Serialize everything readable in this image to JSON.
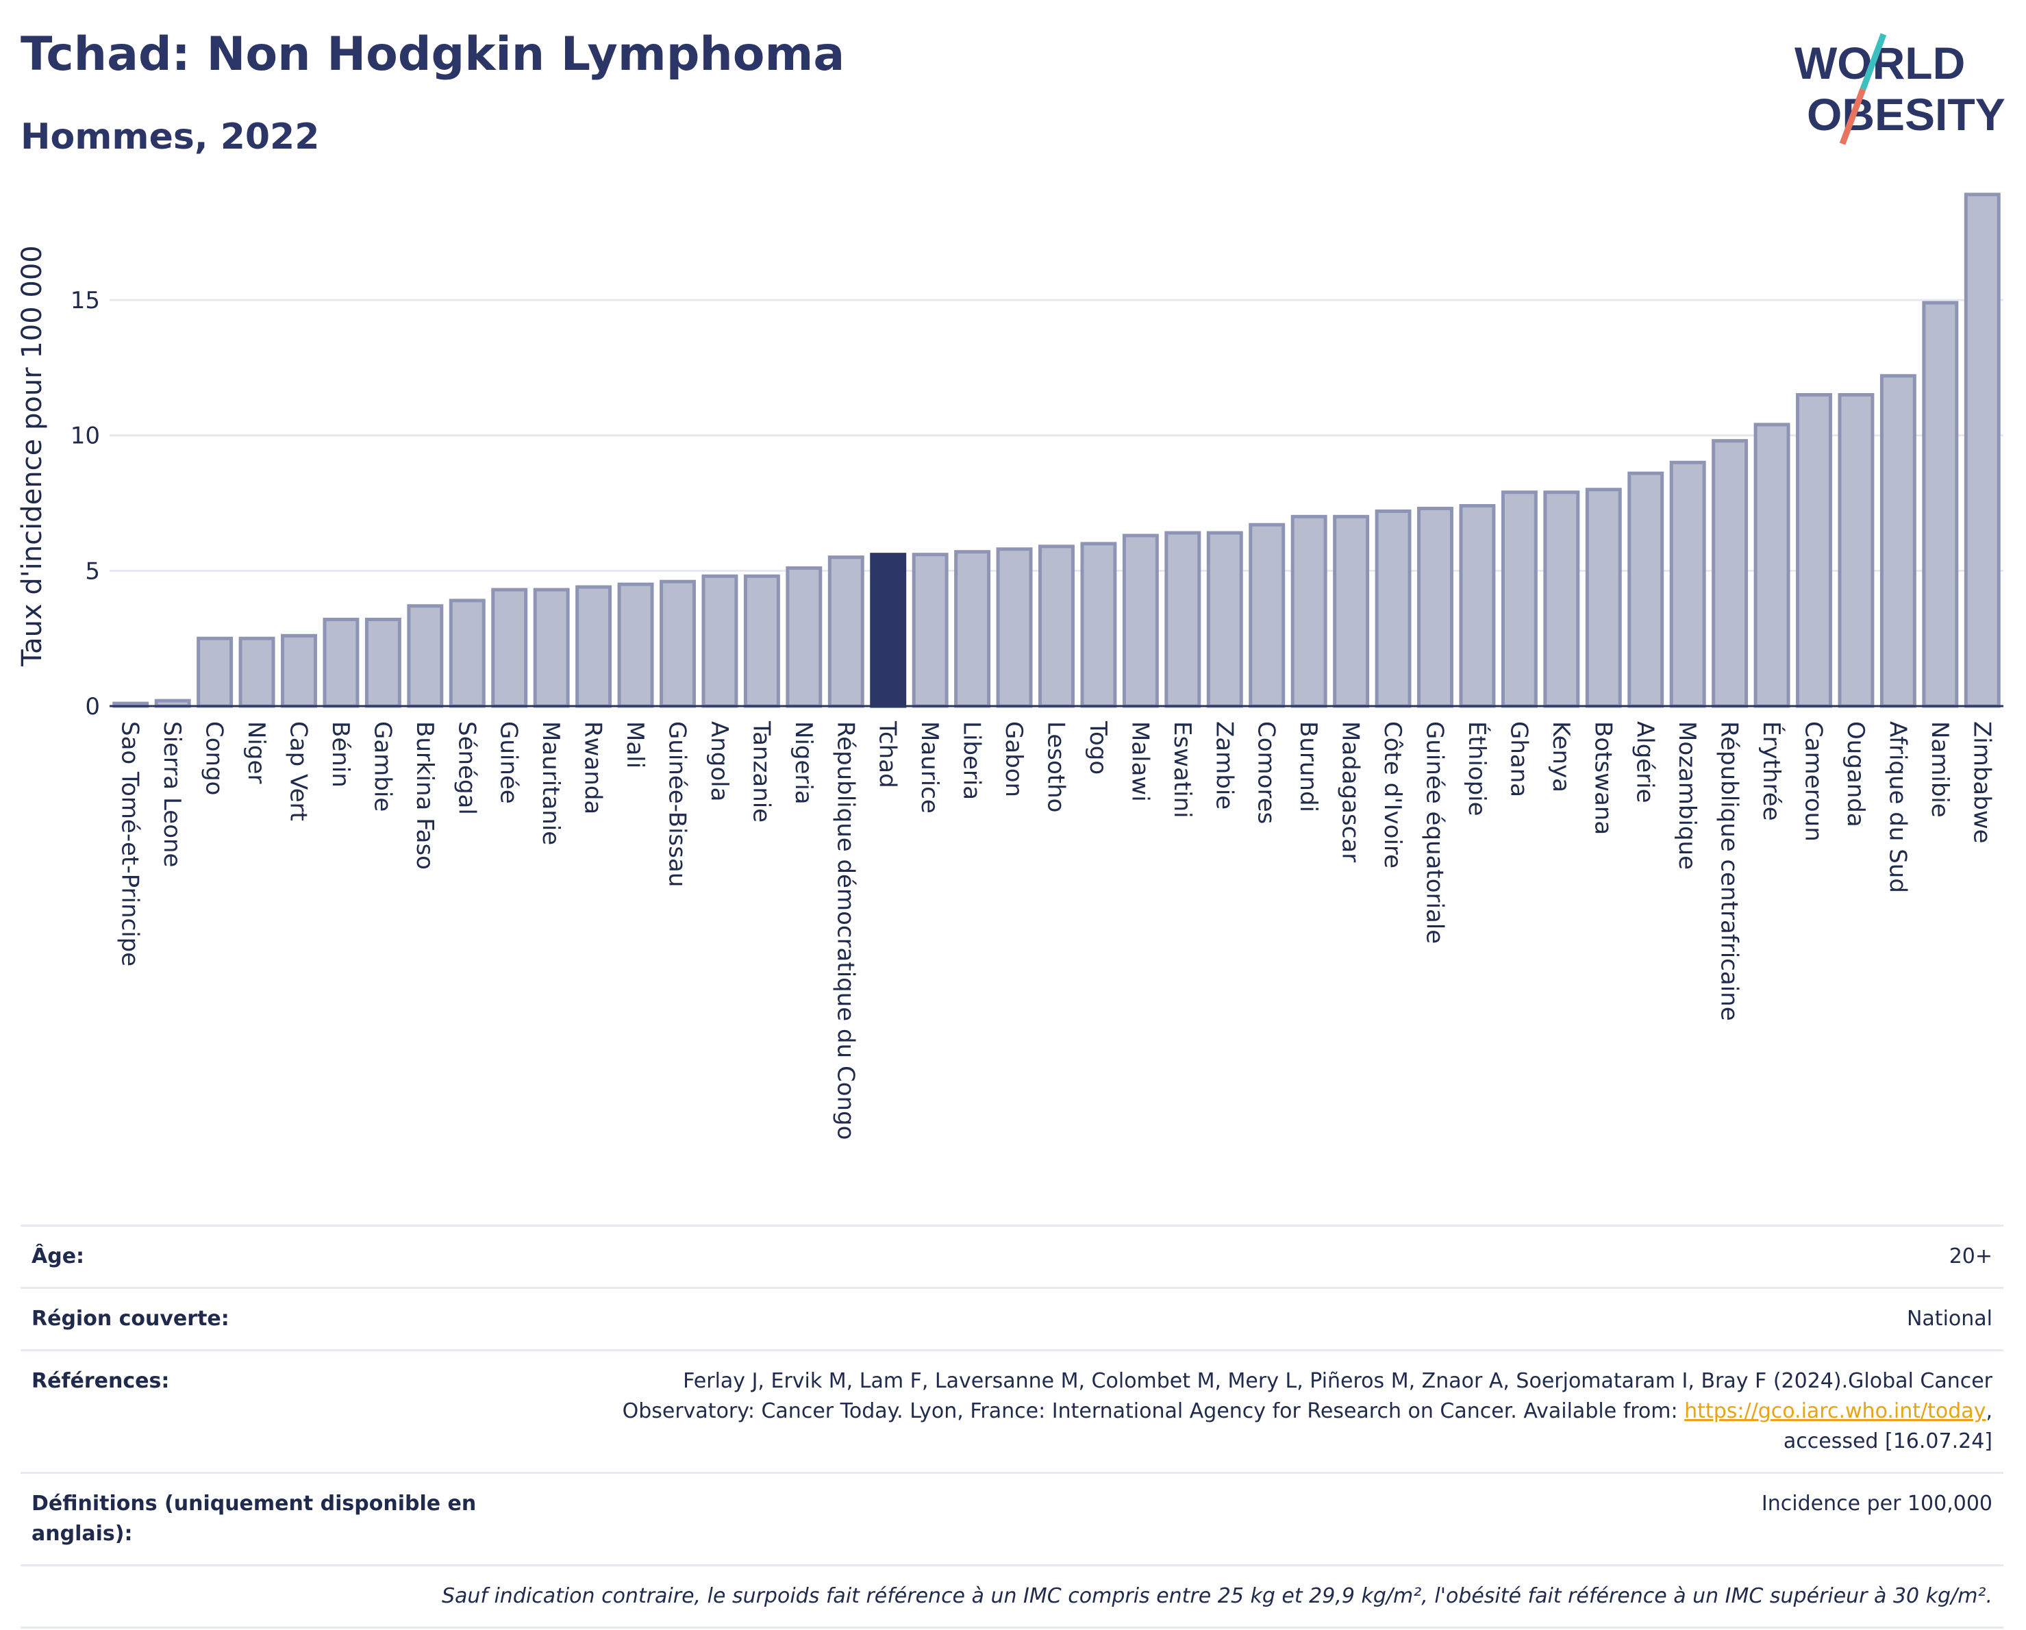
{
  "header": {
    "title": "Tchad: Non Hodgkin Lymphoma",
    "subtitle": "Hommes, 2022",
    "logo_line1": "WORLD",
    "logo_line2": "OBESITY"
  },
  "colors": {
    "bar": "#b8bccf",
    "bar_stroke": "#8e94b3",
    "highlight": "#2b3566",
    "text": "#1f2a4d",
    "grid": "#e6e8ef",
    "link": "#e8a317",
    "logo_teal": "#3bbfbf",
    "logo_coral": "#e8735f"
  },
  "chart_data": {
    "type": "bar",
    "ylabel": "Taux d'incidence pour 100 000",
    "ylim": [
      0,
      19
    ],
    "yticks": [
      0,
      5,
      10,
      15
    ],
    "highlight": "Tchad",
    "grid": true,
    "categories": [
      "Sao Tomé-et-Principe",
      "Sierra Leone",
      "Congo",
      "Niger",
      "Cap Vert",
      "Bénin",
      "Gambie",
      "Burkina Faso",
      "Sénégal",
      "Guinée",
      "Mauritanie",
      "Rwanda",
      "Mali",
      "Guinée-Bissau",
      "Angola",
      "Tanzanie",
      "Nigeria",
      "République démocratique du Congo",
      "Tchad",
      "Maurice",
      "Liberia",
      "Gabon",
      "Lesotho",
      "Togo",
      "Malawi",
      "Eswatini",
      "Zambie",
      "Comores",
      "Burundi",
      "Madagascar",
      "Côte d'Ivoire",
      "Guinée équatoriale",
      "Éthiopie",
      "Ghana",
      "Kenya",
      "Botswana",
      "Algérie",
      "Mozambique",
      "République centrafricaine",
      "Érythrée",
      "Cameroun",
      "Ouganda",
      "Afrique du Sud",
      "Namibie",
      "Zimbabwe"
    ],
    "values": [
      0.1,
      0.2,
      2.5,
      2.5,
      2.6,
      3.2,
      3.2,
      3.7,
      3.9,
      4.3,
      4.3,
      4.4,
      4.5,
      4.6,
      4.8,
      4.8,
      5.1,
      5.5,
      5.6,
      5.6,
      5.7,
      5.8,
      5.9,
      6.0,
      6.3,
      6.4,
      6.4,
      6.7,
      7.0,
      7.0,
      7.2,
      7.3,
      7.4,
      7.9,
      7.9,
      8.0,
      8.6,
      9.0,
      9.8,
      10.4,
      11.5,
      11.5,
      12.2,
      14.9,
      18.9
    ]
  },
  "info": {
    "age_label": "Âge:",
    "age_value": "20+",
    "region_label": "Région couverte:",
    "region_value": "National",
    "ref_label": "Références:",
    "ref_text1": "Ferlay J, Ervik M, Lam F, Laversanne M, Colombet M, Mery L, Piñeros M, Znaor A, Soerjomataram I, Bray F (2024).Global Cancer",
    "ref_text2": "Observatory: Cancer Today. Lyon, France: International Agency for Research on Cancer. Available from:",
    "ref_link": "https://gco.iarc.who.int/today",
    "ref_text3": ",",
    "ref_text4": "accessed [16.07.24]",
    "def_label": "Définitions (uniquement disponible en anglais):",
    "def_value": "Incidence per 100,000",
    "note": "Sauf indication contraire, le surpoids fait référence à un IMC compris entre 25 kg et 29,9 kg/m², l'obésité fait référence à un IMC supérieur à 30 kg/m²."
  }
}
